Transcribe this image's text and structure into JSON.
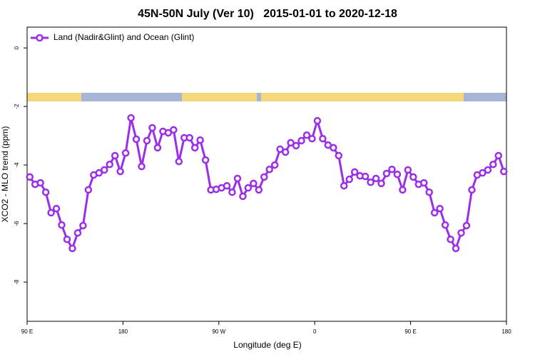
{
  "chart_data": {
    "type": "line",
    "title": "45N-50N July (Ver 10)   2015-01-01 to 2020-12-18",
    "x_label": "Longitude (deg E)",
    "y_label": "XCO2 - MLO trend (ppm)",
    "x": [
      92.5,
      97.5,
      102.5,
      107.5,
      112.5,
      117.5,
      122.5,
      127.5,
      132.5,
      137.5,
      142.5,
      147.5,
      152.5,
      157.5,
      162.5,
      167.5,
      172.5,
      177.5,
      182.5,
      187.5,
      192.5,
      197.5,
      202.5,
      207.5,
      212.5,
      217.5,
      222.5,
      227.5,
      232.5,
      237.5,
      242.5,
      247.5,
      252.5,
      257.5,
      262.5,
      267.5,
      272.5,
      277.5,
      282.5,
      287.5,
      292.5,
      297.5,
      302.5,
      307.5,
      312.5,
      317.5,
      322.5,
      327.5,
      332.5,
      337.5,
      342.5,
      347.5,
      352.5,
      357.5,
      362.5,
      367.5,
      372.5,
      377.5,
      382.5,
      387.5,
      392.5,
      397.5,
      402.5,
      407.5,
      412.5,
      417.5,
      422.5,
      427.5,
      432.5,
      437.5,
      442.5,
      447.5,
      452.5,
      457.5,
      462.5,
      467.5,
      472.5,
      477.5,
      482.5,
      487.5,
      492.5,
      497.5,
      502.5,
      507.5,
      512.5,
      517.5,
      522.5,
      527.5,
      532.5,
      537.5
    ],
    "series": [
      {
        "name": "Land (Nadir&Glint) and Ocean (Glint)",
        "color": "#9b2ee8",
        "values": [
          -4.41,
          -4.66,
          -4.61,
          -4.93,
          -5.63,
          -5.49,
          -6.05,
          -6.54,
          -6.85,
          -6.32,
          -6.07,
          -4.85,
          -4.34,
          -4.27,
          -4.17,
          -3.98,
          -3.68,
          -4.22,
          -3.59,
          -2.39,
          -3.12,
          -4.05,
          -3.17,
          -2.73,
          -3.41,
          -2.85,
          -2.9,
          -2.8,
          -3.88,
          -3.07,
          -3.07,
          -3.41,
          -3.15,
          -3.83,
          -4.85,
          -4.83,
          -4.78,
          -4.71,
          -4.93,
          -4.46,
          -5.07,
          -4.78,
          -4.63,
          -4.85,
          -4.41,
          -4.15,
          -4.0,
          -3.46,
          -3.56,
          -3.24,
          -3.34,
          -3.17,
          -2.98,
          -3.1,
          -2.49,
          -3.1,
          -3.32,
          -3.41,
          -3.68,
          -4.71,
          -4.49,
          -4.24,
          -4.37,
          -4.39,
          -4.59,
          -4.46,
          -4.63,
          -4.29,
          -4.15,
          -4.32,
          -4.85,
          -4.17,
          -4.41,
          -4.66,
          -4.61,
          -4.93,
          -5.63,
          -5.49,
          -6.05,
          -6.54,
          -6.85,
          -6.32,
          -6.07,
          -4.85,
          -4.34,
          -4.27,
          -4.17,
          -3.98,
          -3.68,
          -4.22
        ]
      }
    ],
    "xlim": [
      90,
      540
    ],
    "xticks": [
      {
        "value": 90,
        "label": "90 E"
      },
      180,
      {
        "value": 270,
        "label": "90 W"
      },
      {
        "value": 360,
        "label": "0"
      },
      {
        "value": 450,
        "label": "90 E"
      },
      {
        "value": 540,
        "label": "180"
      }
    ],
    "ylim": [
      -9.34,
      0.71
    ],
    "yticks": [
      0,
      -2,
      -4,
      -6,
      -8
    ],
    "legend": "top-left"
  }
}
